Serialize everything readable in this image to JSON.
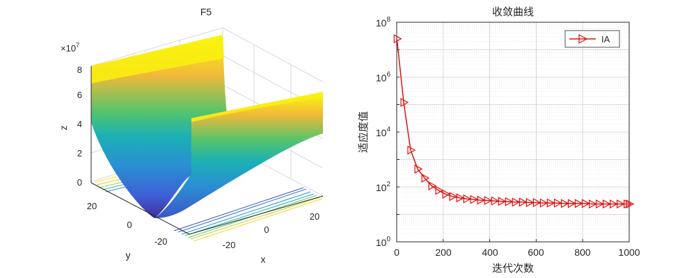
{
  "surface_plot": {
    "title": "F5",
    "xlabel": "x",
    "ylabel": "y",
    "zlabel": "z",
    "z_exponent_base": "×10",
    "z_exponent_power": "7",
    "x_ticks": [
      "-20",
      "0",
      "20"
    ],
    "y_ticks": [
      "20",
      "0",
      "-20"
    ],
    "z_ticks": [
      "0",
      "2",
      "4",
      "6",
      "8"
    ]
  },
  "chart_data": {
    "type": "line",
    "title": "收敛曲线",
    "xlabel": "迭代次数",
    "ylabel": "适应度值",
    "x_scale": "linear",
    "y_scale": "log",
    "xlim": [
      0,
      1000
    ],
    "ylim": [
      1,
      100000000
    ],
    "x_ticks": [
      "0",
      "200",
      "400",
      "600",
      "800",
      "1000"
    ],
    "y_ticks": [
      {
        "base": "10",
        "exp": "0",
        "value": 1
      },
      {
        "base": "10",
        "exp": "2",
        "value": 100
      },
      {
        "base": "10",
        "exp": "4",
        "value": 10000
      },
      {
        "base": "10",
        "exp": "6",
        "value": 1000000
      },
      {
        "base": "10",
        "exp": "8",
        "value": 100000000
      }
    ],
    "grid": true,
    "legend_position": "top-right",
    "series": [
      {
        "name": "IA",
        "color": "#e01010",
        "marker": "right-triangle",
        "x": [
          1,
          30,
          60,
          90,
          120,
          150,
          180,
          210,
          240,
          270,
          300,
          330,
          360,
          390,
          420,
          450,
          480,
          510,
          540,
          570,
          600,
          630,
          660,
          690,
          720,
          750,
          780,
          810,
          840,
          870,
          900,
          930,
          960,
          990,
          1000
        ],
        "y": [
          25000000,
          120000,
          2200,
          450,
          210,
          110,
          75,
          55,
          45,
          40,
          37,
          35,
          33,
          32,
          31,
          30,
          29,
          28,
          28,
          27,
          27,
          26,
          26,
          26,
          25,
          25,
          25,
          25,
          24,
          24,
          24,
          24,
          24,
          24,
          24
        ]
      }
    ]
  },
  "colors": {
    "axis": "#262626",
    "grid": "#dcdcdc",
    "line": "#e01010"
  }
}
